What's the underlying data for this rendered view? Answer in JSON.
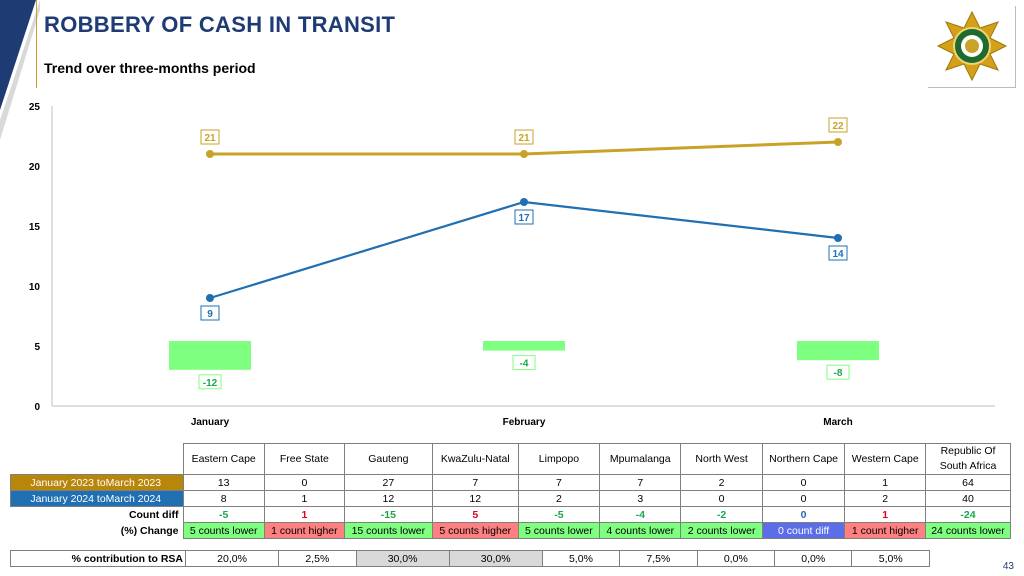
{
  "header": {
    "title": "ROBBERY OF CASH IN TRANSIT",
    "subtitle": "Trend over three-months period"
  },
  "chart_data": {
    "type": "line",
    "categories": [
      "January",
      "February",
      "March"
    ],
    "ylim": [
      0,
      25
    ],
    "yticks": [
      0,
      5,
      10,
      15,
      20,
      25
    ],
    "series": [
      {
        "values": [
          21,
          21,
          22
        ],
        "color": "#c9a227"
      },
      {
        "values": [
          9,
          17,
          14
        ],
        "color": "#1f6fb2"
      }
    ],
    "difference_bars": {
      "values": [
        -12,
        -4,
        -8
      ],
      "color": "#7fff7f",
      "label_color": "#1aa84a"
    }
  },
  "table": {
    "columns": [
      "Eastern Cape",
      "Free State",
      "Gauteng",
      "KwaZulu-Natal",
      "Limpopo",
      "Mpumalanga",
      "North West",
      "Northern Cape",
      "Western Cape",
      "Republic Of South Africa"
    ],
    "rows": {
      "y2023": {
        "label": "January 2023 toMarch 2023",
        "values": [
          "13",
          "0",
          "27",
          "7",
          "7",
          "7",
          "2",
          "0",
          "1",
          "64"
        ]
      },
      "y2024": {
        "label": "January 2024 toMarch 2024",
        "values": [
          "8",
          "1",
          "12",
          "12",
          "2",
          "3",
          "0",
          "0",
          "2",
          "40"
        ]
      },
      "diff": {
        "label": "Count diff",
        "values": [
          "-5",
          "1",
          "-15",
          "5",
          "-5",
          "-4",
          "-2",
          "0",
          "1",
          "-24"
        ]
      },
      "change": {
        "label": "(%) Change",
        "values": [
          "5 counts lower",
          "1 count higher",
          "15 counts lower",
          "5 counts higher",
          "5 counts lower",
          "4 counts lower",
          "2 counts lower",
          "0 count diff",
          "1 count higher",
          "24 counts lower"
        ]
      },
      "contribution": {
        "label": "% contribution to RSA",
        "values": [
          "20,0%",
          "2,5%",
          "30,0%",
          "30,0%",
          "5,0%",
          "7,5%",
          "0,0%",
          "0,0%",
          "5,0%"
        ]
      }
    }
  },
  "footer": {
    "page_number": "43"
  }
}
